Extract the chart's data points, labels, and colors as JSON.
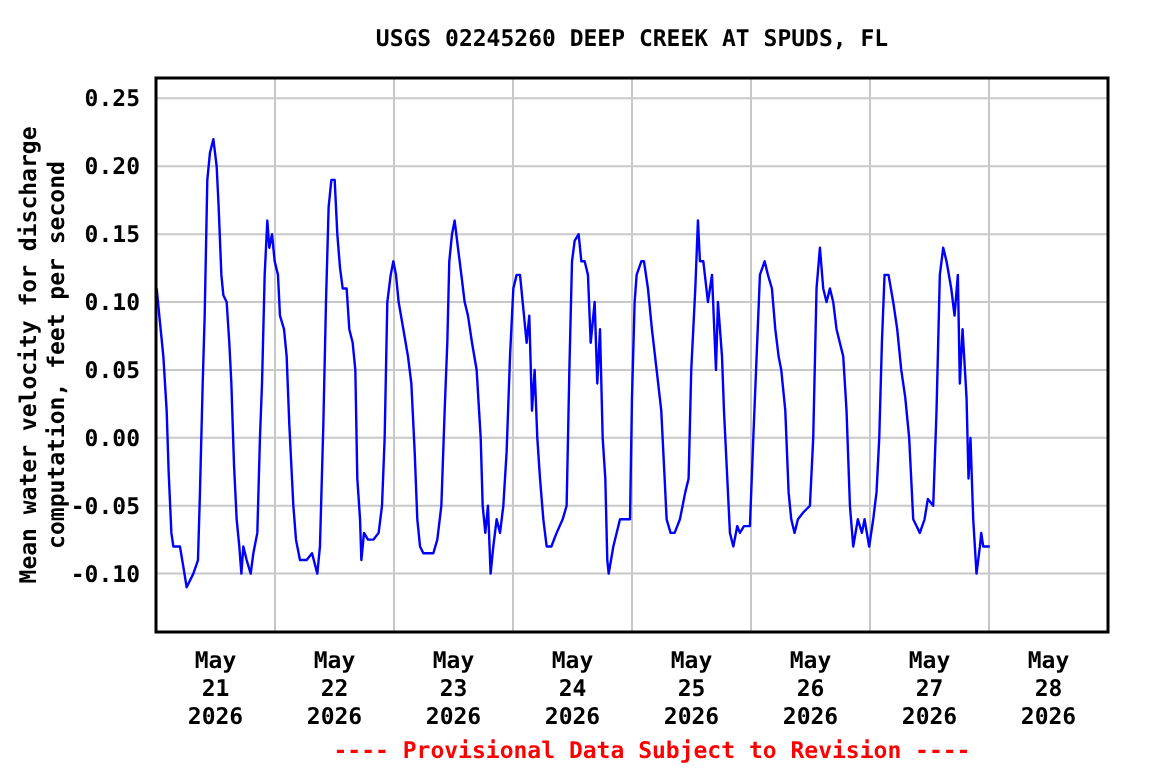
{
  "chart_data": {
    "type": "line",
    "title": "USGS 02245260 DEEP CREEK AT SPUDS, FL",
    "ylabel": "Mean water velocity for discharge\ncomputation, feet per second",
    "annotations": [
      "---- Provisional Data Subject to Revision ----"
    ],
    "xlim": [
      "2026-05-21T00:00",
      "2026-05-29T00:00"
    ],
    "xticks": [
      {
        "value": "2026-05-21T12:00",
        "label": "May\n21\n2026"
      },
      {
        "value": "2026-05-22T00:00",
        "label": null
      },
      {
        "value": "2026-05-22T12:00",
        "label": "May\n22\n2026"
      },
      {
        "value": "2026-05-23T00:00",
        "label": null
      },
      {
        "value": "2026-05-23T12:00",
        "label": "May\n23\n2026"
      },
      {
        "value": "2026-05-24T00:00",
        "label": null
      },
      {
        "value": "2026-05-24T12:00",
        "label": "May\n24\n2026"
      },
      {
        "value": "2026-05-25T00:00",
        "label": null
      },
      {
        "value": "2026-05-25T12:00",
        "label": "May\n25\n2026"
      },
      {
        "value": "2026-05-26T00:00",
        "label": null
      },
      {
        "value": "2026-05-26T12:00",
        "label": "May\n26\n2026"
      },
      {
        "value": "2026-05-27T00:00",
        "label": null
      },
      {
        "value": "2026-05-27T12:00",
        "label": "May\n27\n2026"
      },
      {
        "value": "2026-05-28T00:00",
        "label": null
      },
      {
        "value": "2026-05-28T12:00",
        "label": "May\n28\n2026"
      }
    ],
    "ylim": [
      -0.143,
      0.265
    ],
    "yticks": [
      {
        "value": -0.1,
        "label": "-0.10"
      },
      {
        "value": -0.05,
        "label": "-0.05"
      },
      {
        "value": 0,
        "label": "0.00"
      },
      {
        "value": 0.05,
        "label": "0.05"
      },
      {
        "value": 0.1,
        "label": "0.10"
      },
      {
        "value": 0.15,
        "label": "0.15"
      },
      {
        "value": 0.2,
        "label": "0.20"
      },
      {
        "value": 0.25,
        "label": "0.25"
      }
    ],
    "grid": true,
    "series": [
      {
        "color": "#0000ff",
        "x": [
          "2026-05-21T00:08",
          "2026-05-21T00:48",
          "2026-05-21T01:29",
          "2026-05-21T02:09",
          "2026-05-21T02:33",
          "2026-05-21T03:06",
          "2026-05-21T03:30",
          "2026-05-21T04:50",
          "2026-05-21T05:31",
          "2026-05-21T06:11",
          "2026-05-21T07:32",
          "2026-05-21T08:28",
          "2026-05-21T08:52",
          "2026-05-21T09:25",
          "2026-05-21T09:49",
          "2026-05-21T10:21",
          "2026-05-21T10:53",
          "2026-05-21T11:34",
          "2026-05-21T12:14",
          "2026-05-21T12:38",
          "2026-05-21T13:11",
          "2026-05-21T13:35",
          "2026-05-21T14:15",
          "2026-05-21T14:47",
          "2026-05-21T15:12",
          "2026-05-21T15:44",
          "2026-05-21T16:16",
          "2026-05-21T16:48",
          "2026-05-21T17:13",
          "2026-05-21T17:37",
          "2026-05-21T18:17",
          "2026-05-21T19:06",
          "2026-05-21T19:38",
          "2026-05-21T20:26",
          "2026-05-21T20:58",
          "2026-05-21T21:23",
          "2026-05-21T21:55",
          "2026-05-21T22:27",
          "2026-05-21T22:51",
          "2026-05-21T23:24",
          "2026-05-21T23:56",
          "2026-05-22T00:36",
          "2026-05-22T01:00",
          "2026-05-22T01:49",
          "2026-05-22T02:21",
          "2026-05-22T02:53",
          "2026-05-22T03:42",
          "2026-05-22T04:14",
          "2026-05-22T05:02",
          "2026-05-22T06:23",
          "2026-05-22T07:28",
          "2026-05-22T08:32",
          "2026-05-22T09:04",
          "2026-05-22T09:45",
          "2026-05-22T10:17",
          "2026-05-22T10:49",
          "2026-05-22T11:22",
          "2026-05-22T12:02",
          "2026-05-22T12:34",
          "2026-05-22T13:07",
          "2026-05-22T13:39",
          "2026-05-22T14:27",
          "2026-05-22T14:59",
          "2026-05-22T15:40",
          "2026-05-22T16:12",
          "2026-05-22T16:36",
          "2026-05-22T17:09",
          "2026-05-22T17:25",
          "2026-05-22T17:57",
          "2026-05-22T18:45",
          "2026-05-22T19:50",
          "2026-05-22T20:54",
          "2026-05-22T21:35",
          "2026-05-22T22:07",
          "2026-05-22T22:39",
          "2026-05-22T23:20",
          "2026-05-22T23:52",
          "2026-05-23T00:24",
          "2026-05-23T00:56",
          "2026-05-23T01:53",
          "2026-05-23T02:49",
          "2026-05-23T03:30",
          "2026-05-23T04:10",
          "2026-05-23T04:42",
          "2026-05-23T05:15",
          "2026-05-23T05:55",
          "2026-05-23T07:56",
          "2026-05-23T08:44",
          "2026-05-23T09:33",
          "2026-05-23T10:13",
          "2026-05-23T10:45",
          "2026-05-23T11:09",
          "2026-05-23T11:42",
          "2026-05-23T12:14",
          "2026-05-23T12:54",
          "2026-05-23T13:35",
          "2026-05-23T14:15",
          "2026-05-23T14:55",
          "2026-05-23T15:44",
          "2026-05-23T16:40",
          "2026-05-23T17:29",
          "2026-05-23T17:53",
          "2026-05-23T18:25",
          "2026-05-23T18:57",
          "2026-05-23T19:29",
          "2026-05-23T20:02",
          "2026-05-23T20:42",
          "2026-05-23T21:23",
          "2026-05-23T22:03",
          "2026-05-23T22:43",
          "2026-05-23T23:24",
          "2026-05-24T00:04",
          "2026-05-24T00:44",
          "2026-05-24T01:25",
          "2026-05-24T02:13",
          "2026-05-24T02:45",
          "2026-05-24T03:17",
          "2026-05-24T03:50",
          "2026-05-24T04:22",
          "2026-05-24T04:54",
          "2026-05-24T05:27",
          "2026-05-24T06:07",
          "2026-05-24T06:47",
          "2026-05-24T07:44",
          "2026-05-24T08:48",
          "2026-05-24T10:01",
          "2026-05-24T10:49",
          "2026-05-24T11:22",
          "2026-05-24T11:54",
          "2026-05-24T12:26",
          "2026-05-24T13:14",
          "2026-05-24T13:47",
          "2026-05-24T14:27",
          "2026-05-24T15:07",
          "2026-05-24T15:40",
          "2026-05-24T16:28",
          "2026-05-24T17:00",
          "2026-05-24T17:33",
          "2026-05-24T18:05",
          "2026-05-24T18:37",
          "2026-05-24T19:01",
          "2026-05-24T19:18",
          "2026-05-24T20:14",
          "2026-05-24T21:35",
          "2026-05-24T23:36",
          "2026-05-25T00:00",
          "2026-05-25T00:32",
          "2026-05-25T00:56",
          "2026-05-25T01:53",
          "2026-05-25T02:25",
          "2026-05-25T03:13",
          "2026-05-25T04:01",
          "2026-05-25T04:58",
          "2026-05-25T05:54",
          "2026-05-25T06:35",
          "2026-05-25T06:59",
          "2026-05-25T07:47",
          "2026-05-25T08:36",
          "2026-05-25T09:40",
          "2026-05-25T10:45",
          "2026-05-25T11:25",
          "2026-05-25T11:57",
          "2026-05-25T12:46",
          "2026-05-25T13:18",
          "2026-05-25T13:42",
          "2026-05-25T14:23",
          "2026-05-25T15:19",
          "2026-05-25T16:08",
          "2026-05-25T16:56",
          "2026-05-25T17:20",
          "2026-05-25T18:09",
          "2026-05-25T18:33",
          "2026-05-25T19:05",
          "2026-05-25T19:45",
          "2026-05-25T20:26",
          "2026-05-25T21:14",
          "2026-05-25T21:46",
          "2026-05-25T22:35",
          "2026-05-25T23:47",
          "2026-05-26T00:28",
          "2026-05-26T01:08",
          "2026-05-26T01:48",
          "2026-05-26T02:45",
          "2026-05-26T03:25",
          "2026-05-26T04:13",
          "2026-05-26T04:54",
          "2026-05-26T05:34",
          "2026-05-26T06:06",
          "2026-05-26T06:55",
          "2026-05-26T07:35",
          "2026-05-26T08:07",
          "2026-05-26T08:47",
          "2026-05-26T09:28",
          "2026-05-26T10:32",
          "2026-05-26T11:53",
          "2026-05-26T12:33",
          "2026-05-26T13:13",
          "2026-05-26T13:54",
          "2026-05-26T14:34",
          "2026-05-26T15:14",
          "2026-05-26T15:55",
          "2026-05-26T16:35",
          "2026-05-26T17:15",
          "2026-05-26T18:36",
          "2026-05-26T19:16",
          "2026-05-26T19:57",
          "2026-05-26T20:37",
          "2026-05-26T21:33",
          "2026-05-26T22:22",
          "2026-05-26T22:54",
          "2026-05-26T23:50",
          "2026-05-27T00:39",
          "2026-05-27T01:19",
          "2026-05-27T01:52",
          "2026-05-27T02:24",
          "2026-05-27T02:56",
          "2026-05-27T03:44",
          "2026-05-27T04:41",
          "2026-05-27T05:29",
          "2026-05-27T06:18",
          "2026-05-27T07:06",
          "2026-05-27T07:54",
          "2026-05-27T08:43",
          "2026-05-27T09:23",
          "2026-05-27T10:03",
          "2026-05-27T11:00",
          "2026-05-27T11:40",
          "2026-05-27T12:45",
          "2026-05-27T13:25",
          "2026-05-27T14:05",
          "2026-05-27T14:46",
          "2026-05-27T15:26",
          "2026-05-27T16:23",
          "2026-05-27T17:03",
          "2026-05-27T17:43",
          "2026-05-27T18:07",
          "2026-05-27T18:40",
          "2026-05-27T19:28",
          "2026-05-27T19:52",
          "2026-05-27T20:16",
          "2026-05-27T20:49",
          "2026-05-27T21:29",
          "2026-05-27T22:10",
          "2026-05-27T22:26",
          "2026-05-27T22:50",
          "2026-05-28T00:10"
        ],
        "values": [
          0.11,
          0.085,
          0.06,
          0.02,
          -0.025,
          -0.07,
          -0.08,
          -0.08,
          -0.095,
          -0.11,
          -0.1,
          -0.09,
          -0.04,
          0.04,
          0.09,
          0.19,
          0.21,
          0.22,
          0.2,
          0.17,
          0.12,
          0.105,
          0.1,
          0.07,
          0.04,
          -0.02,
          -0.06,
          -0.08,
          -0.1,
          -0.08,
          -0.09,
          -0.1,
          -0.085,
          -0.07,
          0,
          0.04,
          0.12,
          0.16,
          0.14,
          0.15,
          0.13,
          0.12,
          0.09,
          0.08,
          0.06,
          0.01,
          -0.05,
          -0.075,
          -0.09,
          -0.09,
          -0.085,
          -0.1,
          -0.08,
          0.01,
          0.1,
          0.17,
          0.19,
          0.19,
          0.15,
          0.125,
          0.11,
          0.11,
          0.08,
          0.07,
          0.05,
          -0.03,
          -0.06,
          -0.09,
          -0.07,
          -0.075,
          -0.075,
          -0.07,
          -0.05,
          0,
          0.1,
          0.12,
          0.13,
          0.12,
          0.1,
          0.08,
          0.06,
          0.04,
          -0.01,
          -0.06,
          -0.08,
          -0.085,
          -0.085,
          -0.075,
          -0.05,
          0.02,
          0.07,
          0.13,
          0.15,
          0.16,
          0.14,
          0.12,
          0.1,
          0.09,
          0.07,
          0.05,
          0,
          -0.05,
          -0.07,
          -0.05,
          -0.1,
          -0.08,
          -0.06,
          -0.07,
          -0.05,
          -0.01,
          0.06,
          0.11,
          0.12,
          0.12,
          0.09,
          0.07,
          0.09,
          0.02,
          0.05,
          0,
          -0.03,
          -0.06,
          -0.08,
          -0.08,
          -0.07,
          -0.06,
          -0.05,
          0.05,
          0.13,
          0.145,
          0.15,
          0.13,
          0.13,
          0.12,
          0.07,
          0.1,
          0.04,
          0.08,
          0,
          -0.03,
          -0.09,
          -0.1,
          -0.08,
          -0.06,
          -0.06,
          0.03,
          0.1,
          0.12,
          0.13,
          0.13,
          0.11,
          0.08,
          0.05,
          0.02,
          -0.03,
          -0.06,
          -0.07,
          -0.07,
          -0.06,
          -0.04,
          -0.03,
          0.05,
          0.11,
          0.16,
          0.13,
          0.13,
          0.1,
          0.12,
          0.05,
          0.1,
          0.06,
          0.02,
          -0.02,
          -0.07,
          -0.08,
          -0.065,
          -0.07,
          -0.065,
          -0.065,
          0,
          0.06,
          0.12,
          0.13,
          0.12,
          0.11,
          0.08,
          0.06,
          0.05,
          0.02,
          -0.04,
          -0.06,
          -0.07,
          -0.06,
          -0.055,
          -0.05,
          0,
          0.11,
          0.14,
          0.11,
          0.1,
          0.11,
          0.1,
          0.08,
          0.06,
          0.02,
          -0.05,
          -0.08,
          -0.06,
          -0.07,
          -0.06,
          -0.08,
          -0.06,
          -0.04,
          0,
          0.07,
          0.12,
          0.12,
          0.1,
          0.08,
          0.05,
          0.03,
          0,
          -0.06,
          -0.065,
          -0.07,
          -0.06,
          -0.045,
          -0.05,
          0.02,
          0.12,
          0.14,
          0.13,
          0.11,
          0.09,
          0.12,
          0.04,
          0.08,
          0.03,
          -0.03,
          0,
          -0.06,
          -0.1,
          -0.08,
          -0.07,
          -0.08,
          -0.08
        ]
      }
    ]
  }
}
